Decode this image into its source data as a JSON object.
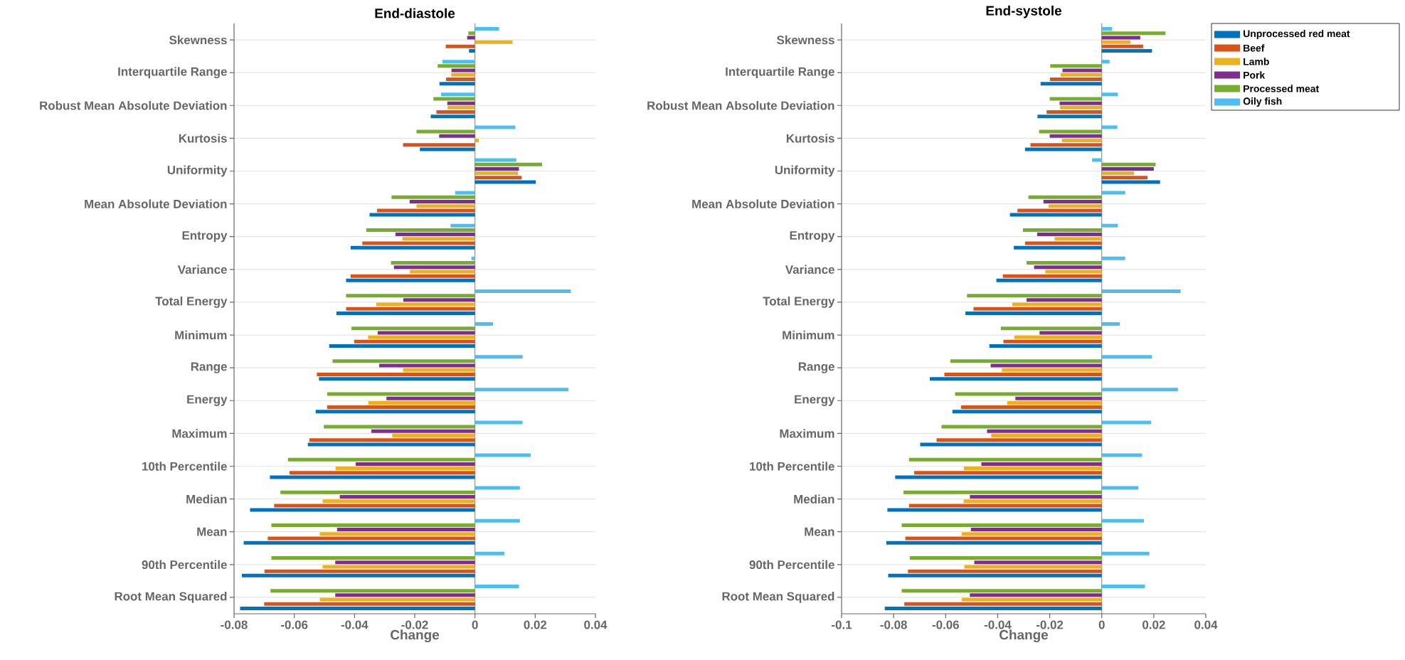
{
  "chart_data": [
    {
      "type": "bar",
      "orientation": "horizontal",
      "title": "End-diastole",
      "xlabel": "Change",
      "grid": "y",
      "categories": [
        "Skewness",
        "Interquartile Range",
        "Robust Mean Absolute Deviation",
        "Kurtosis",
        "Uniformity",
        "Mean Absolute Deviation",
        "Entropy",
        "Variance",
        "Total Energy",
        "Minimum",
        "Range",
        "Energy",
        "Maximum",
        "10th Percentile",
        "Median",
        "Mean",
        "90th Percentile",
        "Root Mean Squared"
      ],
      "xlim": [
        -0.08,
        0.04
      ],
      "xticks": [
        -0.08,
        -0.06,
        -0.04,
        -0.02,
        0,
        0.02,
        0.04
      ],
      "ref_lines": [
        {
          "axis": "x",
          "value": 0,
          "color": "#808080"
        }
      ],
      "series": [
        {
          "color": "#0072bd",
          "values": [
            -0.002,
            -0.0118,
            -0.0147,
            -0.0183,
            0.0202,
            -0.035,
            -0.0413,
            -0.0428,
            -0.046,
            -0.0484,
            -0.0518,
            -0.0529,
            -0.0555,
            -0.0681,
            -0.0747,
            -0.0768,
            -0.0774,
            -0.078
          ]
        },
        {
          "color": "#d95319",
          "values": [
            -0.0097,
            -0.0096,
            -0.0128,
            -0.0239,
            0.0155,
            -0.0325,
            -0.0374,
            -0.0413,
            -0.0428,
            -0.0401,
            -0.0525,
            -0.0491,
            -0.055,
            -0.0616,
            -0.0667,
            -0.0688,
            -0.0699,
            -0.07
          ]
        },
        {
          "color": "#edb120",
          "values": [
            0.0125,
            -0.0079,
            -0.0091,
            0.0013,
            0.0143,
            -0.0194,
            -0.0241,
            -0.0216,
            -0.0328,
            -0.0355,
            -0.0239,
            -0.0354,
            -0.0275,
            -0.0463,
            -0.0506,
            -0.0515,
            -0.0506,
            -0.0515
          ]
        },
        {
          "color": "#7e2f8e",
          "values": [
            -0.0026,
            -0.0078,
            -0.0092,
            -0.0119,
            0.0146,
            -0.0217,
            -0.0264,
            -0.0269,
            -0.0238,
            -0.0323,
            -0.0318,
            -0.0294,
            -0.0344,
            -0.0396,
            -0.0449,
            -0.0458,
            -0.0464,
            -0.0464
          ]
        },
        {
          "color": "#77ac30",
          "values": [
            -0.0022,
            -0.0124,
            -0.0138,
            -0.0194,
            0.0223,
            -0.0277,
            -0.0361,
            -0.0279,
            -0.0428,
            -0.041,
            -0.0473,
            -0.0491,
            -0.0502,
            -0.0621,
            -0.0646,
            -0.0676,
            -0.0676,
            -0.0679
          ]
        },
        {
          "color": "#4dbeee",
          "values": [
            0.008,
            -0.0108,
            -0.0113,
            0.0134,
            0.0137,
            -0.0066,
            -0.0081,
            -0.0012,
            0.0318,
            0.006,
            0.0158,
            0.031,
            0.0158,
            0.0185,
            0.0149,
            0.0149,
            0.0098,
            0.0146
          ]
        }
      ]
    },
    {
      "type": "bar",
      "orientation": "horizontal",
      "title": "End-systole",
      "xlabel": "Change",
      "grid": "y",
      "legend": "top right",
      "categories": [
        "Skewness",
        "Interquartile Range",
        "Robust Mean Absolute Deviation",
        "Kurtosis",
        "Uniformity",
        "Mean Absolute Deviation",
        "Entropy",
        "Variance",
        "Total Energy",
        "Minimum",
        "Range",
        "Energy",
        "Maximum",
        "10th Percentile",
        "Median",
        "Mean",
        "90th Percentile",
        "Root Mean Squared"
      ],
      "xlim": [
        -0.1,
        0.04
      ],
      "xticks": [
        -0.1,
        -0.08,
        -0.06,
        -0.04,
        -0.02,
        0,
        0.02,
        0.04
      ],
      "ref_lines": [
        {
          "axis": "x",
          "value": 0,
          "color": "#808080"
        }
      ],
      "series": [
        {
          "name": "Unprocessed red meat",
          "color": "#0072bd",
          "values": [
            0.0193,
            -0.0235,
            -0.0247,
            -0.0295,
            0.0224,
            -0.0353,
            -0.0338,
            -0.0405,
            -0.0524,
            -0.0432,
            -0.0661,
            -0.0574,
            -0.0698,
            -0.0794,
            -0.0824,
            -0.0828,
            -0.0821,
            -0.0834
          ]
        },
        {
          "name": "Beef",
          "color": "#d95319",
          "values": [
            0.0159,
            -0.0199,
            -0.0212,
            -0.0274,
            0.0176,
            -0.0324,
            -0.0295,
            -0.038,
            -0.0493,
            -0.0378,
            -0.0605,
            -0.0541,
            -0.0635,
            -0.0721,
            -0.0741,
            -0.0755,
            -0.0745,
            -0.0759
          ]
        },
        {
          "name": "Lamb",
          "color": "#edb120",
          "values": [
            0.011,
            -0.0158,
            -0.016,
            -0.0153,
            0.0124,
            -0.0204,
            -0.0181,
            -0.0217,
            -0.0344,
            -0.0336,
            -0.0384,
            -0.0363,
            -0.0425,
            -0.053,
            -0.0531,
            -0.0538,
            -0.0528,
            -0.0538
          ]
        },
        {
          "name": "Pork",
          "color": "#7e2f8e",
          "values": [
            0.0148,
            -0.0151,
            -0.0162,
            -0.02,
            0.02,
            -0.0224,
            -0.0248,
            -0.026,
            -0.0289,
            -0.0239,
            -0.0427,
            -0.0332,
            -0.0441,
            -0.0463,
            -0.0507,
            -0.0503,
            -0.049,
            -0.0507
          ]
        },
        {
          "name": "Processed meat",
          "color": "#77ac30",
          "values": [
            0.0245,
            -0.0198,
            -0.02,
            -0.0241,
            0.0207,
            -0.0282,
            -0.0303,
            -0.0289,
            -0.0518,
            -0.0388,
            -0.0582,
            -0.0564,
            -0.0616,
            -0.0741,
            -0.0762,
            -0.0769,
            -0.0738,
            -0.0769
          ]
        },
        {
          "name": "Oily fish",
          "color": "#4dbeee",
          "values": [
            0.004,
            0.003,
            0.0062,
            0.006,
            -0.0037,
            0.009,
            0.0062,
            0.009,
            0.0303,
            0.0069,
            0.0193,
            0.0293,
            0.019,
            0.0155,
            0.0141,
            0.0162,
            0.0183,
            0.0166
          ]
        }
      ]
    }
  ]
}
